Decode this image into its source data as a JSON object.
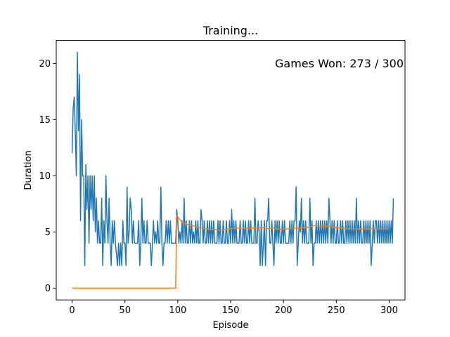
{
  "chart_data": {
    "type": "line",
    "title": "Training...",
    "xlabel": "Episode",
    "ylabel": "Duration",
    "xlim": [
      -15,
      315
    ],
    "ylim": [
      -1.05,
      22.05
    ],
    "xticks": [
      0,
      50,
      100,
      150,
      200,
      250,
      300
    ],
    "yticks": [
      0,
      5,
      10,
      15,
      20
    ],
    "grid": false,
    "legend": "none",
    "annotation": "Games Won: 273 / 300",
    "series": [
      {
        "color": "#1f77b4",
        "x_start": 0,
        "values": [
          12,
          16,
          17,
          14,
          10,
          21,
          14,
          19,
          6,
          15,
          10,
          10,
          2,
          11,
          7,
          10,
          4,
          10,
          7,
          10,
          6,
          10,
          5,
          8,
          4,
          6,
          4,
          4,
          8,
          2,
          6,
          4,
          10,
          6,
          4,
          8,
          4,
          2,
          6,
          4,
          6,
          4,
          3,
          2,
          4,
          2,
          4,
          2,
          6,
          4,
          4,
          2,
          9,
          4,
          5,
          8,
          7,
          4,
          6,
          4,
          4,
          4,
          4,
          6,
          2,
          4,
          8,
          4,
          6,
          4,
          4,
          6,
          4,
          4,
          4,
          2,
          4,
          6,
          4,
          5,
          4,
          6,
          4,
          4,
          9,
          4,
          2,
          4,
          4,
          6,
          4,
          6,
          4,
          6,
          4,
          4,
          4,
          4,
          4,
          7,
          6,
          4,
          5,
          4,
          6,
          4,
          8,
          4,
          6,
          4,
          4,
          6,
          4,
          6,
          4,
          5,
          4,
          6,
          4,
          6,
          4,
          4,
          7,
          6,
          4,
          6,
          4,
          4,
          6,
          4,
          6,
          4,
          6,
          4,
          6,
          4,
          4,
          4,
          6,
          4,
          6,
          4,
          4,
          6,
          4,
          4,
          6,
          4,
          4,
          6,
          4,
          7,
          4,
          6,
          4,
          6,
          4,
          4,
          4,
          6,
          4,
          4,
          6,
          4,
          6,
          4,
          4,
          6,
          4,
          6,
          4,
          4,
          4,
          8,
          4,
          4,
          6,
          5,
          2,
          6,
          2,
          4,
          6,
          2,
          6,
          6,
          8,
          4,
          4,
          6,
          4,
          2,
          6,
          4,
          6,
          4,
          6,
          4,
          4,
          6,
          4,
          6,
          4,
          4,
          4,
          4,
          6,
          4,
          6,
          4,
          6,
          6,
          9,
          2,
          4,
          6,
          5,
          8,
          4,
          6,
          4,
          6,
          4,
          4,
          4,
          8,
          4,
          6,
          2,
          4,
          4,
          6,
          4,
          6,
          4,
          6,
          4,
          6,
          4,
          6,
          4,
          6,
          4,
          8,
          6,
          4,
          6,
          4,
          6,
          4,
          4,
          6,
          4,
          4,
          6,
          4,
          6,
          4,
          4,
          6,
          4,
          6,
          4,
          6,
          4,
          6,
          4,
          6,
          4,
          8,
          4,
          6,
          4,
          6,
          4,
          4,
          6,
          4,
          6,
          4,
          6,
          4,
          6,
          2,
          4,
          6,
          4,
          6,
          6,
          4,
          6,
          4,
          6,
          4,
          6,
          4,
          6,
          4,
          6,
          4,
          6,
          4,
          6,
          4,
          8
        ]
      },
      {
        "color": "#ff7f0e",
        "x": [
          0,
          98,
          99,
          102,
          105,
          110,
          115,
          120,
          125,
          130,
          135,
          140,
          145,
          150,
          155,
          160,
          165,
          170,
          175,
          180,
          185,
          190,
          195,
          200,
          205,
          210,
          215,
          220,
          225,
          230,
          235,
          240,
          245,
          250,
          255,
          260,
          265,
          270,
          275,
          280,
          285,
          290,
          295,
          299
        ],
        "values": [
          0,
          0,
          6.5,
          6.1,
          5.8,
          5.65,
          5.55,
          5.4,
          5.3,
          5.25,
          5.2,
          5.15,
          5.2,
          5.3,
          5.35,
          5.3,
          5.35,
          5.35,
          5.35,
          5.4,
          5.3,
          5.35,
          5.25,
          5.25,
          5.3,
          5.35,
          5.35,
          5.4,
          5.45,
          5.6,
          5.5,
          5.5,
          5.45,
          5.4,
          5.35,
          5.3,
          5.3,
          5.25,
          5.25,
          5.25,
          5.3,
          5.3,
          5.3,
          5.3
        ]
      }
    ]
  }
}
